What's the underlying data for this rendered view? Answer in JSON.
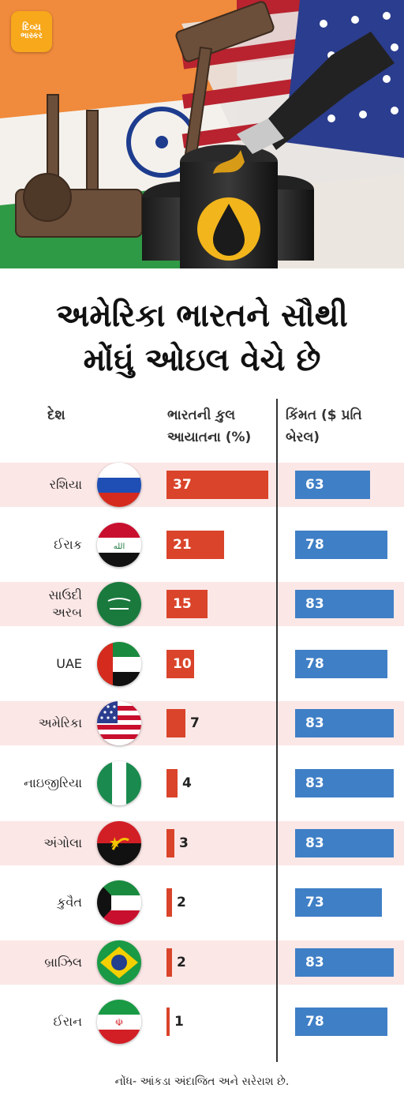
{
  "logo": {
    "line1": "દિવ્ય",
    "line2": "ભાસ્કર"
  },
  "title": {
    "line1": "અમેરિકા ભારતને સૌથી",
    "line2": "મોંઘું ઓઇલ વેચે છે"
  },
  "chart_data": {
    "type": "bar",
    "title": "અમેરિકા ભારતને સૌથી મોંઘું ઓઇલ વેચે છે",
    "columns": {
      "country": "દેશ",
      "imports_1": "ભારતની કુલ",
      "imports_2": "આયાતના (%)",
      "price_1": "કિંમત ($ પ્રતિ",
      "price_2": "બેરલ)"
    },
    "categories": [
      "રશિયા",
      "ઈરાક",
      "સાઉદી અરબ",
      "UAE",
      "અમેરિકા",
      "નાઇજીરિયા",
      "અંગોલા",
      "કુવૈત",
      "બ્રાઝિલ",
      "ઈરાન"
    ],
    "series": [
      {
        "name": "ભારતની કુલ આયાતના (%)",
        "values": [
          37,
          21,
          15,
          10,
          7,
          4,
          3,
          2,
          2,
          1
        ],
        "color": "#d9442a"
      },
      {
        "name": "કિંમત ($ પ્રતિ બેરલ)",
        "values": [
          63,
          78,
          83,
          78,
          83,
          83,
          83,
          73,
          83,
          78
        ],
        "color": "#3f7fc6"
      }
    ],
    "country_lines": [
      [
        "રશિયા"
      ],
      [
        "ઈરાક"
      ],
      [
        "સાઉદી",
        "અરબ"
      ],
      [
        "UAE"
      ],
      [
        "અમેરિકા"
      ],
      [
        "નાઇજીરિયા"
      ],
      [
        "અંગોલા"
      ],
      [
        "કુવૈત"
      ],
      [
        "બ્રાઝિલ"
      ],
      [
        "ઈરાન"
      ]
    ],
    "flag_icons": [
      "russia-flag-icon",
      "iraq-flag-icon",
      "saudi-arabia-flag-icon",
      "uae-flag-icon",
      "usa-flag-icon",
      "nigeria-flag-icon",
      "angola-flag-icon",
      "kuwait-flag-icon",
      "brazil-flag-icon",
      "iran-flag-icon"
    ],
    "xlim_imports": [
      0,
      37
    ],
    "xlim_price": [
      0,
      100
    ]
  },
  "note": "નોંધ- આંકડા અંદાજિત અને સરેરાશ છે."
}
